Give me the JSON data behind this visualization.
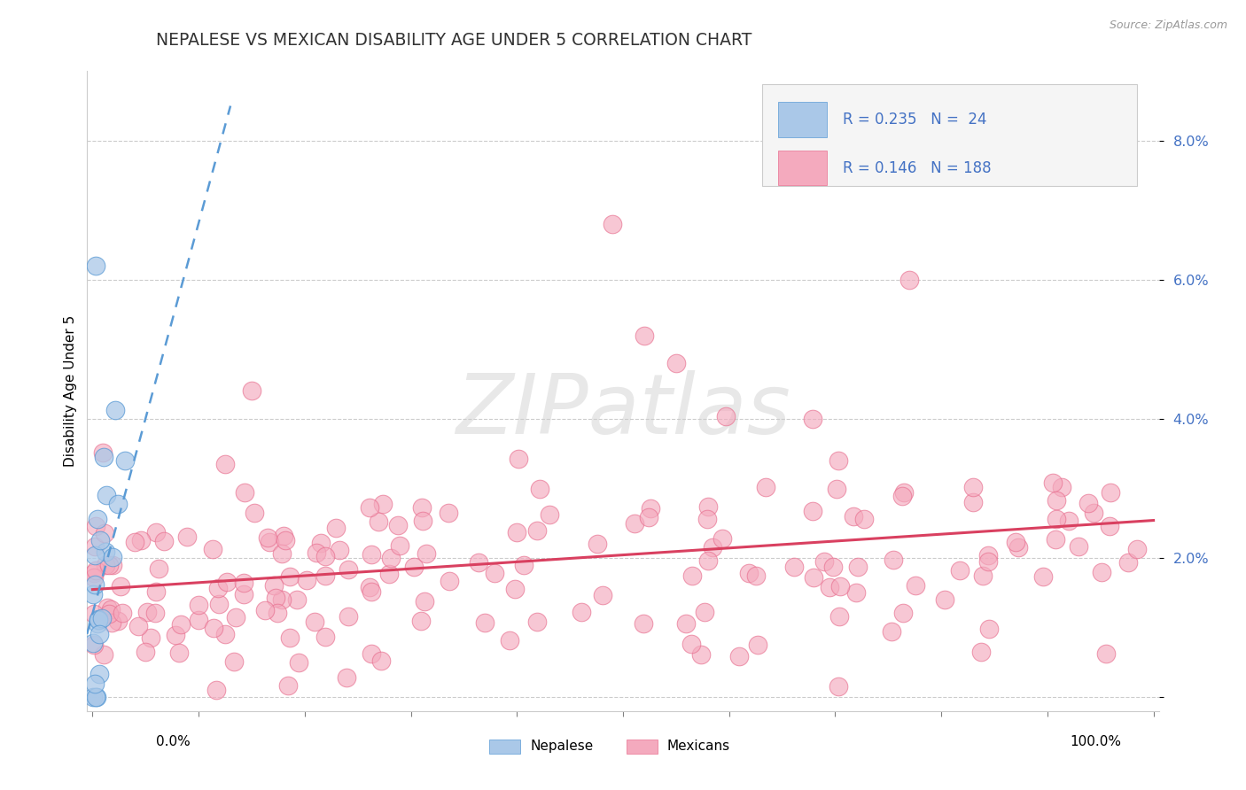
{
  "title": "NEPALESE VS MEXICAN DISABILITY AGE UNDER 5 CORRELATION CHART",
  "source": "Source: ZipAtlas.com",
  "ylabel": "Disability Age Under 5",
  "r_nepalese": 0.235,
  "n_nepalese": 24,
  "r_mexicans": 0.146,
  "n_mexicans": 188,
  "nepalese_fill_color": "#aac8e8",
  "nepalese_edge_color": "#5b9bd5",
  "mexicans_fill_color": "#f4aabe",
  "mexicans_edge_color": "#e87090",
  "nepalese_line_color": "#5b9bd5",
  "mexicans_line_color": "#d94060",
  "legend_color": "#4472c4",
  "watermark_text": "ZIPatlas",
  "ytick_vals": [
    0.0,
    0.02,
    0.04,
    0.06,
    0.08
  ],
  "ytick_labels": [
    "",
    "2.0%",
    "4.0%",
    "6.0%",
    "8.0%"
  ]
}
